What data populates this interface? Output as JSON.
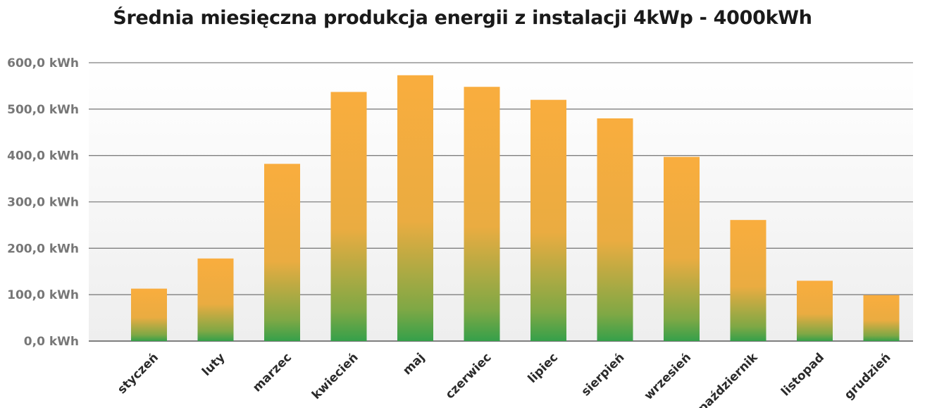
{
  "chart_data": {
    "type": "bar",
    "title": "Średnia miesięczna produkcja energii z instalacji 4kWp - 4000kWh",
    "categories": [
      "styczeń",
      "luty",
      "marzec",
      "kwiecień",
      "maj",
      "czerwiec",
      "lipiec",
      "sierpień",
      "wrzesień",
      "październik",
      "listopad",
      "grudzień"
    ],
    "values": [
      113,
      178,
      382,
      537,
      573,
      548,
      520,
      480,
      397,
      261,
      130,
      99
    ],
    "yticks": [
      "0,0 kWh",
      "100,0 kWh",
      "200,0 kWh",
      "300,0 kWh",
      "400,0 kWh",
      "500,0 kWh",
      "600,0 kWh"
    ],
    "ylim": [
      0,
      600
    ],
    "grid": true,
    "legend": "none",
    "colors": {
      "bar_top": "#f9ad3e",
      "bar_mid": "#eaac41",
      "bar_bottom": "#35a04a",
      "grid": "#7f7f7f",
      "plot_bg_top": "#ffffff",
      "plot_bg_bottom": "#eeeeee"
    }
  }
}
